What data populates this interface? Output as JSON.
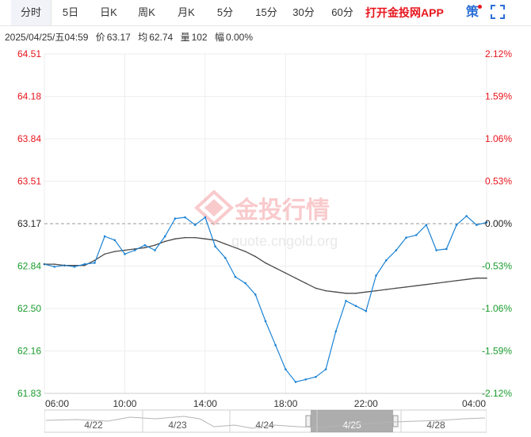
{
  "tabs": [
    {
      "label": "分时",
      "active": true
    },
    {
      "label": "5日",
      "active": false
    },
    {
      "label": "日K",
      "active": false
    },
    {
      "label": "周K",
      "active": false
    },
    {
      "label": "月K",
      "active": false
    },
    {
      "label": "5分",
      "active": false
    },
    {
      "label": "15分",
      "active": false
    },
    {
      "label": "30分",
      "active": false
    },
    {
      "label": "60分",
      "active": false
    }
  ],
  "app_link": "打开金投网APP",
  "strategy_label": "策",
  "fullscreen_icon": "fullscreen-icon",
  "info": {
    "datetime": "2025/04/25/五04:59",
    "price_label": "价",
    "price": "63.17",
    "avg_label": "均",
    "avg": "62.74",
    "volume_label": "量",
    "volume": "102",
    "amplitude_label": "幅",
    "amplitude": "0.00%"
  },
  "watermark": {
    "brand": "金投行情",
    "url": "quote.cngold.org"
  },
  "colors": {
    "price_line": "#1c83d4",
    "avg_line": "#4a4a4a",
    "up": "#e8141c",
    "down": "#1a9b2e",
    "ref_line": "#999999"
  },
  "chart_data": {
    "type": "line",
    "x_ticks": [
      "06:00",
      "10:00",
      "14:00",
      "18:00",
      "22:00",
      "04:00"
    ],
    "y_ticks": [
      "64.51",
      "64.18",
      "63.84",
      "63.51",
      "63.17",
      "62.84",
      "62.50",
      "62.16",
      "61.83"
    ],
    "pct_ticks": [
      "2.12%",
      "1.59%",
      "1.06%",
      "0.53%",
      "0.00%",
      "-0.53%",
      "-1.06%",
      "-1.59%",
      "-2.12%"
    ],
    "ylim": [
      61.83,
      64.51
    ],
    "reference_price": 63.17,
    "grid": true,
    "series": [
      {
        "key": "price",
        "x": [
          "06:00",
          "06:30",
          "07:00",
          "07:30",
          "08:00",
          "08:30",
          "09:00",
          "09:30",
          "10:00",
          "10:30",
          "11:00",
          "11:30",
          "12:00",
          "12:30",
          "13:00",
          "13:30",
          "14:00",
          "14:30",
          "15:00",
          "15:30",
          "16:00",
          "16:30",
          "17:00",
          "17:30",
          "18:00",
          "18:30",
          "19:00",
          "19:30",
          "20:00",
          "20:30",
          "21:00",
          "21:30",
          "22:00",
          "22:30",
          "23:00",
          "23:30",
          "00:00",
          "00:30",
          "01:00",
          "01:30",
          "02:00",
          "02:30",
          "03:00",
          "03:30",
          "04:00"
        ],
        "values": [
          62.85,
          62.83,
          62.84,
          62.83,
          62.85,
          62.86,
          63.07,
          63.04,
          62.93,
          62.96,
          63.0,
          62.96,
          63.07,
          63.21,
          63.22,
          63.16,
          63.22,
          62.99,
          62.9,
          62.75,
          62.7,
          62.61,
          62.4,
          62.21,
          62.02,
          61.92,
          61.94,
          61.96,
          62.02,
          62.32,
          62.56,
          62.52,
          62.48,
          62.76,
          62.88,
          62.96,
          63.06,
          63.08,
          63.16,
          62.96,
          62.97,
          63.16,
          63.23,
          63.16,
          63.18
        ]
      },
      {
        "key": "average",
        "x": [
          "06:00",
          "06:30",
          "07:00",
          "07:30",
          "08:00",
          "08:30",
          "09:00",
          "09:30",
          "10:00",
          "10:30",
          "11:00",
          "11:30",
          "12:00",
          "12:30",
          "13:00",
          "13:30",
          "14:00",
          "14:30",
          "15:00",
          "15:30",
          "16:00",
          "16:30",
          "17:00",
          "17:30",
          "18:00",
          "18:30",
          "19:00",
          "19:30",
          "20:00",
          "20:30",
          "21:00",
          "21:30",
          "22:00",
          "22:30",
          "23:00",
          "23:30",
          "00:00",
          "00:30",
          "01:00",
          "01:30",
          "02:00",
          "02:30",
          "03:00",
          "03:30",
          "04:00"
        ],
        "values": [
          62.85,
          62.85,
          62.84,
          62.84,
          62.84,
          62.88,
          62.93,
          62.95,
          62.96,
          62.97,
          62.98,
          63.0,
          63.03,
          63.05,
          63.06,
          63.06,
          63.05,
          63.04,
          63.01,
          62.98,
          62.95,
          62.91,
          62.86,
          62.82,
          62.78,
          62.74,
          62.7,
          62.66,
          62.64,
          62.63,
          62.62,
          62.62,
          62.63,
          62.64,
          62.65,
          62.66,
          62.67,
          62.68,
          62.69,
          62.7,
          62.71,
          62.72,
          62.73,
          62.74,
          62.74
        ]
      }
    ]
  },
  "navigator": {
    "dates": [
      "4/22",
      "4/23",
      "4/24",
      "4/25",
      "4/28"
    ],
    "selected": "4/25"
  }
}
